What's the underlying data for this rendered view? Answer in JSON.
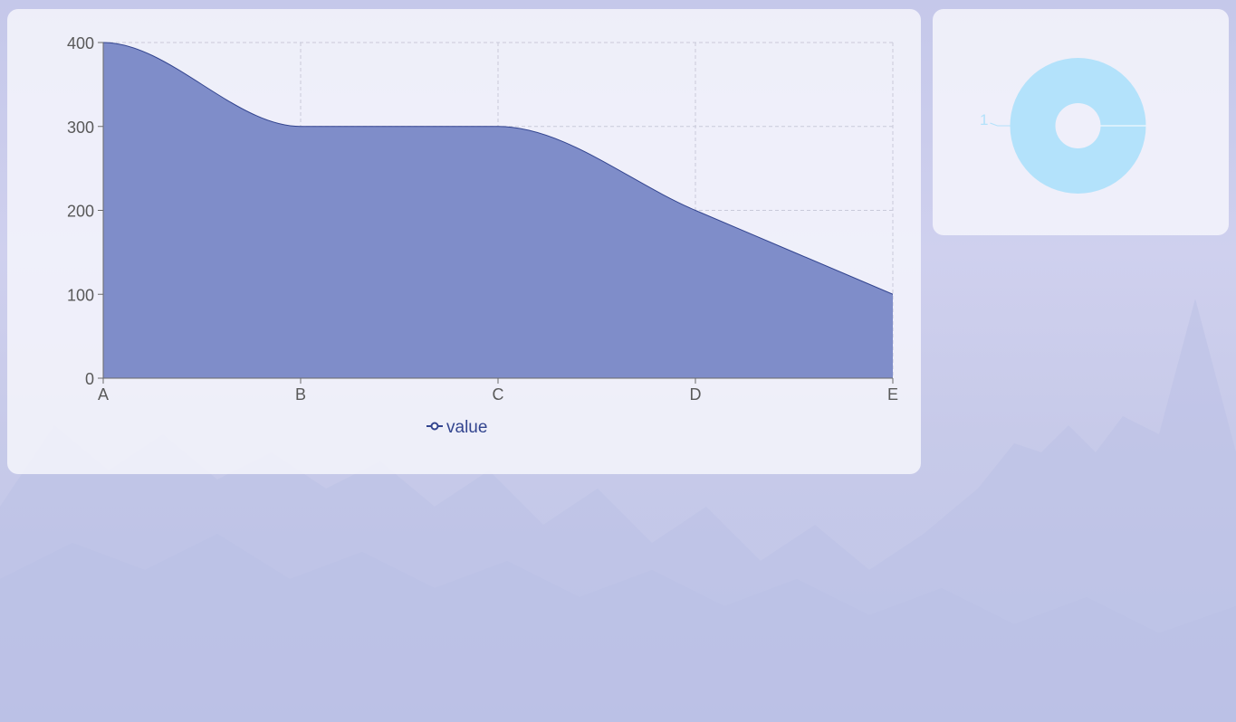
{
  "chart_data": [
    {
      "type": "area",
      "smooth": true,
      "categories": [
        "A",
        "B",
        "C",
        "D",
        "E"
      ],
      "series": [
        {
          "name": "value",
          "values": [
            400,
            300,
            300,
            200,
            100
          ]
        }
      ],
      "y_ticks": [
        "0",
        "100",
        "200",
        "300",
        "400"
      ],
      "ylim": [
        0,
        400
      ],
      "grid": true,
      "legend_position": "bottom",
      "colors": {
        "area": "#7f8dc9",
        "line": "#33458f",
        "axis": "#6b6b6b",
        "grid": "#c9cad9"
      }
    },
    {
      "type": "pie",
      "donut": true,
      "slices": [
        {
          "label": "1",
          "value": 1
        }
      ],
      "colors": {
        "slice": "#b3e2fb",
        "label": "#b3e2fb"
      }
    }
  ]
}
